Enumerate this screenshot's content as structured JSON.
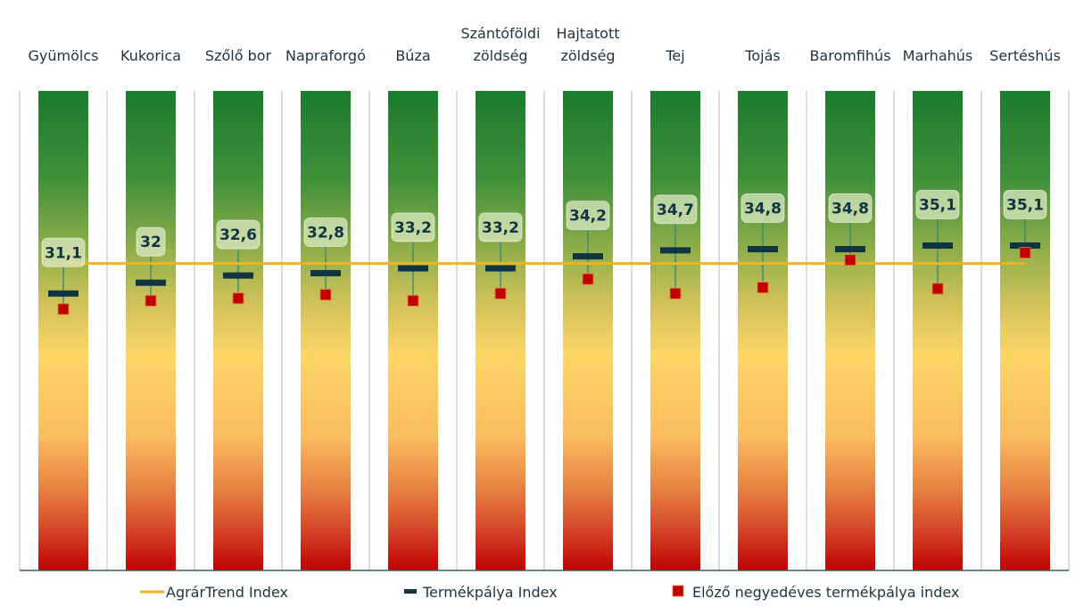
{
  "chart_data": {
    "type": "scatter",
    "title": "",
    "xlabel": "",
    "ylabel": "",
    "ylim": [
      8,
      48
    ],
    "grid": false,
    "legend_position": "bottom",
    "categories": [
      [
        "Gyümölcs"
      ],
      [
        "Kukorica"
      ],
      [
        "Szőlő bor"
      ],
      [
        "Napraforgó"
      ],
      [
        "Búza"
      ],
      [
        "Szántóföldi",
        "zöldség"
      ],
      [
        "Hajtatott",
        "zöldség"
      ],
      [
        "Tej"
      ],
      [
        "Tojás"
      ],
      [
        "Baromfihús"
      ],
      [
        "Marhahús"
      ],
      [
        "Sertéshús"
      ]
    ],
    "series": [
      {
        "name": "AgrárTrend Index",
        "marker": "line",
        "color": "#f0b323",
        "values": [
          33.6,
          33.6,
          33.6,
          33.6,
          33.6,
          33.6,
          33.6,
          33.6,
          33.6,
          33.6,
          33.6,
          33.6
        ]
      },
      {
        "name": "Termékpálya Index",
        "marker": "dash",
        "color": "#0f3442",
        "values": [
          31.1,
          32,
          32.6,
          32.8,
          33.2,
          33.2,
          34.2,
          34.7,
          34.8,
          34.8,
          35.1,
          35.1
        ],
        "labels": [
          "31,1",
          "32",
          "32,6",
          "32,8",
          "33,2",
          "33,2",
          "34,2",
          "34,7",
          "34,8",
          "34,8",
          "35,1",
          "35,1"
        ]
      },
      {
        "name": "Előző negyedéves termékpálya index",
        "marker": "square",
        "color": "#c00000",
        "values": [
          29.8,
          30.5,
          30.7,
          31.0,
          30.5,
          31.1,
          32.3,
          31.1,
          31.6,
          33.9,
          31.5,
          34.5
        ]
      }
    ],
    "background_gradient": {
      "description": "each category column is a vertical green-yellow-red gradient band",
      "top_color": "#1b7f2e",
      "mid_color": "#fdd468",
      "bottom_color": "#c00000"
    }
  }
}
